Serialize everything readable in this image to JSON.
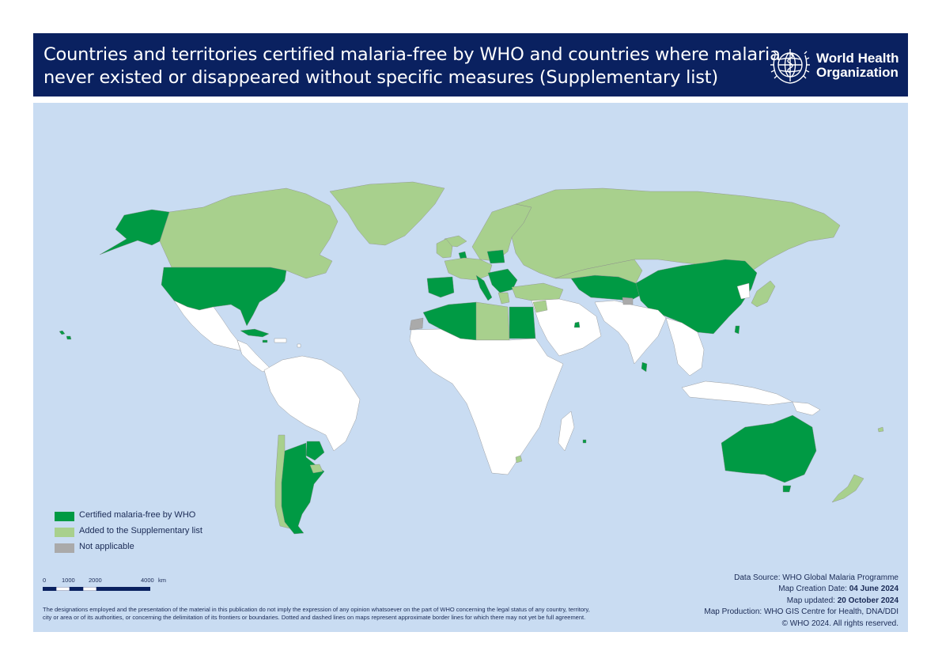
{
  "header": {
    "title_line1": "Countries and territories certified malaria-free by WHO and countries where malaria",
    "title_line2": "never existed or disappeared without specific measures (Supplementary list)",
    "logo_line1": "World Health",
    "logo_line2": "Organization"
  },
  "colors": {
    "header_bg": "#0a2160",
    "ocean": "#c9dcf2",
    "certified": "#009a44",
    "supplementary": "#a8d08d",
    "not_applicable": "#aaaaaa",
    "other": "#ffffff"
  },
  "legend": [
    {
      "label": "Certified malaria-free by WHO",
      "color": "#009a44"
    },
    {
      "label": "Added to the Supplementary list",
      "color": "#a8d08d"
    },
    {
      "label": "Not applicable",
      "color": "#aaaaaa"
    }
  ],
  "scale_bar": {
    "ticks": [
      "0",
      "1000",
      "2000",
      "4000"
    ],
    "unit": "km"
  },
  "disclaimer": {
    "line1": "The designations employed and the presentation of the material in this publication do not imply the expression of any opinion whatsoever on the part of WHO concerning the legal status of any country, territory,",
    "line2": "city or area or of its authorities, or concerning the delimitation of its frontiers or boundaries. Dotted and dashed lines on maps represent approximate border lines for which there may not yet be full agreement."
  },
  "source": {
    "data_source": "Data Source: WHO Global Malaria Programme",
    "creation_label": "Map Creation Date: ",
    "creation_date": "04 June 2024",
    "updated_label": "Map updated: ",
    "updated_date": "20 October 2024",
    "production": "Map Production: WHO GIS Centre for Health, DNA/DDI",
    "copyright": "© WHO 2024. All rights reserved."
  }
}
